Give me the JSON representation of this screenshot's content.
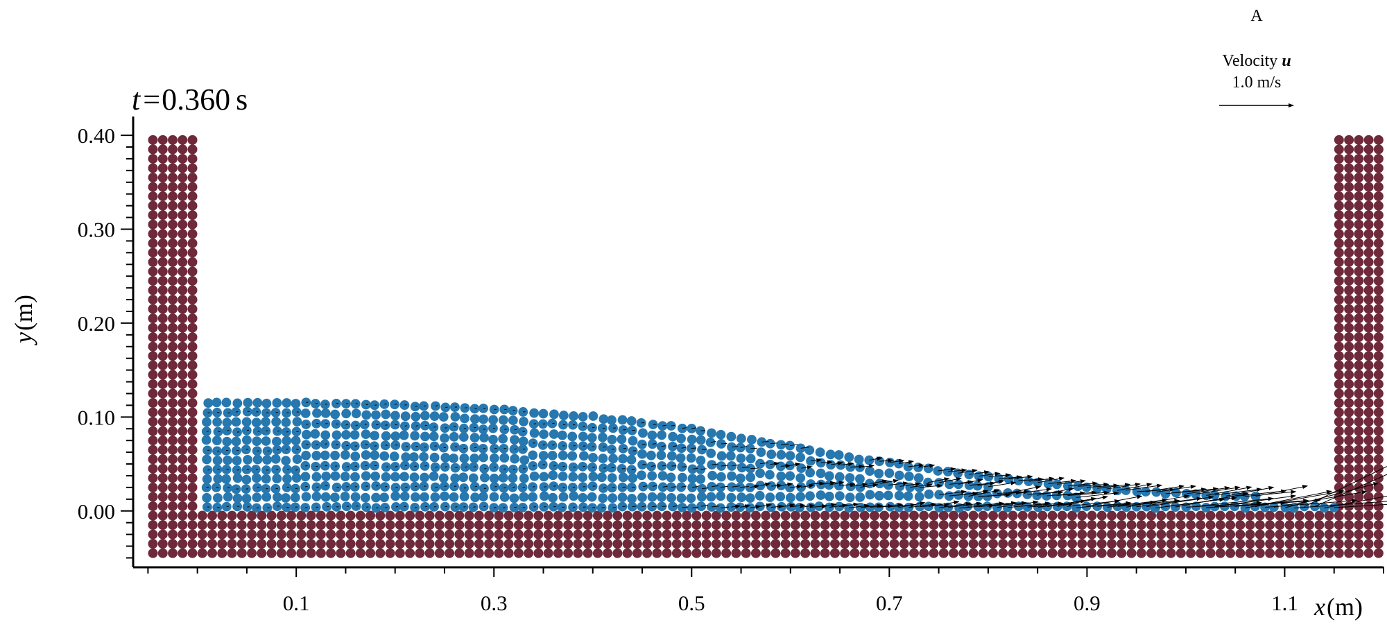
{
  "chart_data": {
    "type": "scatter",
    "title": {
      "var": "t",
      "eq": "=",
      "value": "0.360",
      "unit": "s"
    },
    "xlabel": {
      "var": "x",
      "unit": "(m)"
    },
    "ylabel": {
      "var": "y",
      "unit": "(m)"
    },
    "xlim": [
      -0.065,
      1.2
    ],
    "ylim": [
      -0.06,
      0.42
    ],
    "x_ticks": [
      0.1,
      0.3,
      0.5,
      0.7,
      0.9,
      1.1
    ],
    "x_tick_labels": [
      "0.1",
      "0.3",
      "0.5",
      "0.7",
      "0.9",
      "1.1"
    ],
    "y_ticks": [
      0.0,
      0.1,
      0.2,
      0.3,
      0.4
    ],
    "y_tick_labels": [
      "0.00",
      "0.10",
      "0.20",
      "0.30",
      "0.40"
    ],
    "particle_spacing": 0.01,
    "wall_layers": 5,
    "walls": {
      "color": "#6e2a3a",
      "left": {
        "x_range": [
          -0.045,
          -0.005
        ],
        "y_range": [
          -0.045,
          0.4
        ]
      },
      "right": {
        "x_range": [
          1.155,
          1.195
        ],
        "y_range": [
          -0.045,
          0.4
        ]
      },
      "floor": {
        "x_range": [
          0.005,
          1.145
        ],
        "y_range": [
          -0.045,
          -0.005
        ]
      }
    },
    "fluid": {
      "color": "#2878b0",
      "x_range": [
        0.01,
        1.15
      ],
      "surface_profile": {
        "x": [
          0.0,
          0.1,
          0.2,
          0.3,
          0.4,
          0.45,
          0.5,
          0.55,
          0.6,
          0.65,
          0.7,
          0.75,
          0.8,
          0.85,
          0.9,
          0.95,
          1.0,
          1.05,
          1.1,
          1.15
        ],
        "y": [
          0.115,
          0.115,
          0.113,
          0.108,
          0.1,
          0.094,
          0.087,
          0.078,
          0.069,
          0.059,
          0.051,
          0.043,
          0.036,
          0.03,
          0.025,
          0.021,
          0.018,
          0.016,
          0.014,
          0.012
        ]
      }
    },
    "velocity_legend": {
      "header": "A",
      "label": "Velocity",
      "symbol": "u",
      "reference": "1.0 m/s",
      "reference_speed": 1.0
    }
  }
}
